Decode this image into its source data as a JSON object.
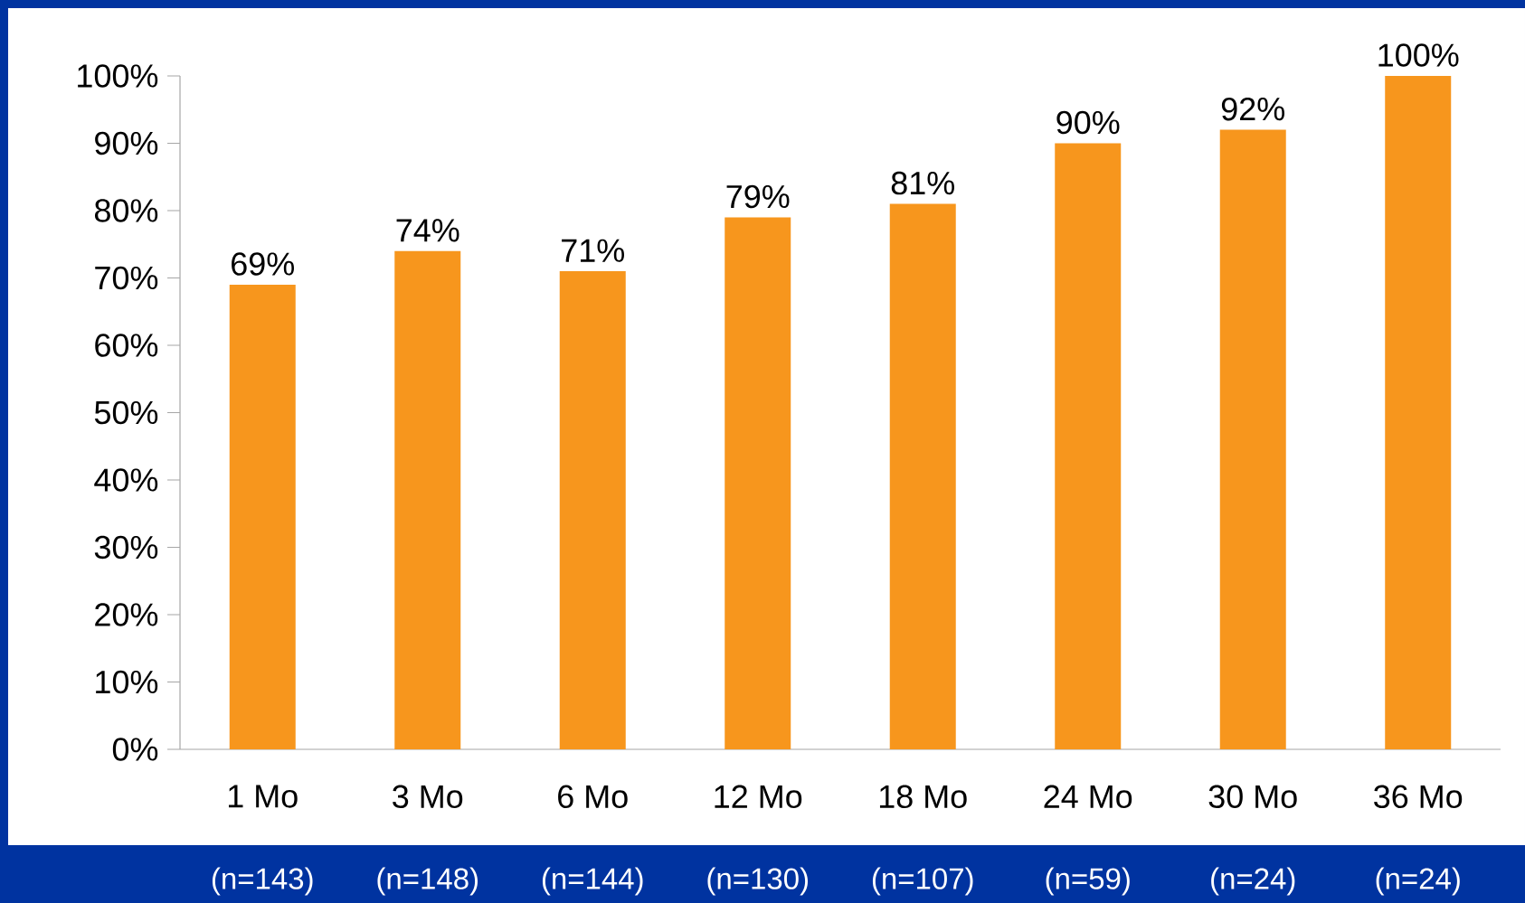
{
  "chart_data": {
    "type": "bar",
    "categories": [
      "1 Mo",
      "3 Mo",
      "6 Mo",
      "12 Mo",
      "18 Mo",
      "24 Mo",
      "30 Mo",
      "36 Mo"
    ],
    "values": [
      69,
      74,
      71,
      79,
      81,
      90,
      92,
      100
    ],
    "value_labels": [
      "69%",
      "74%",
      "71%",
      "79%",
      "81%",
      "90%",
      "92%",
      "100%"
    ],
    "color": "#f7961d",
    "ylim": [
      0,
      100
    ],
    "yticks": [
      {
        "value": 0,
        "label": "0%"
      },
      {
        "value": 10,
        "label": "10%"
      },
      {
        "value": 20,
        "label": "20%"
      },
      {
        "value": 30,
        "label": "30%"
      },
      {
        "value": 40,
        "label": "40%"
      },
      {
        "value": 50,
        "label": "50%"
      },
      {
        "value": 60,
        "label": "60%"
      },
      {
        "value": 70,
        "label": "70%"
      },
      {
        "value": 80,
        "label": "80%"
      },
      {
        "value": 90,
        "label": "90%"
      },
      {
        "value": 100,
        "label": "100%"
      }
    ],
    "grid": false,
    "annotations": [
      "(n=143)",
      "(n=148)",
      "(n=144)",
      "(n=130)",
      "(n=107)",
      "(n=59)",
      "(n=24)",
      "(n=24)"
    ]
  }
}
